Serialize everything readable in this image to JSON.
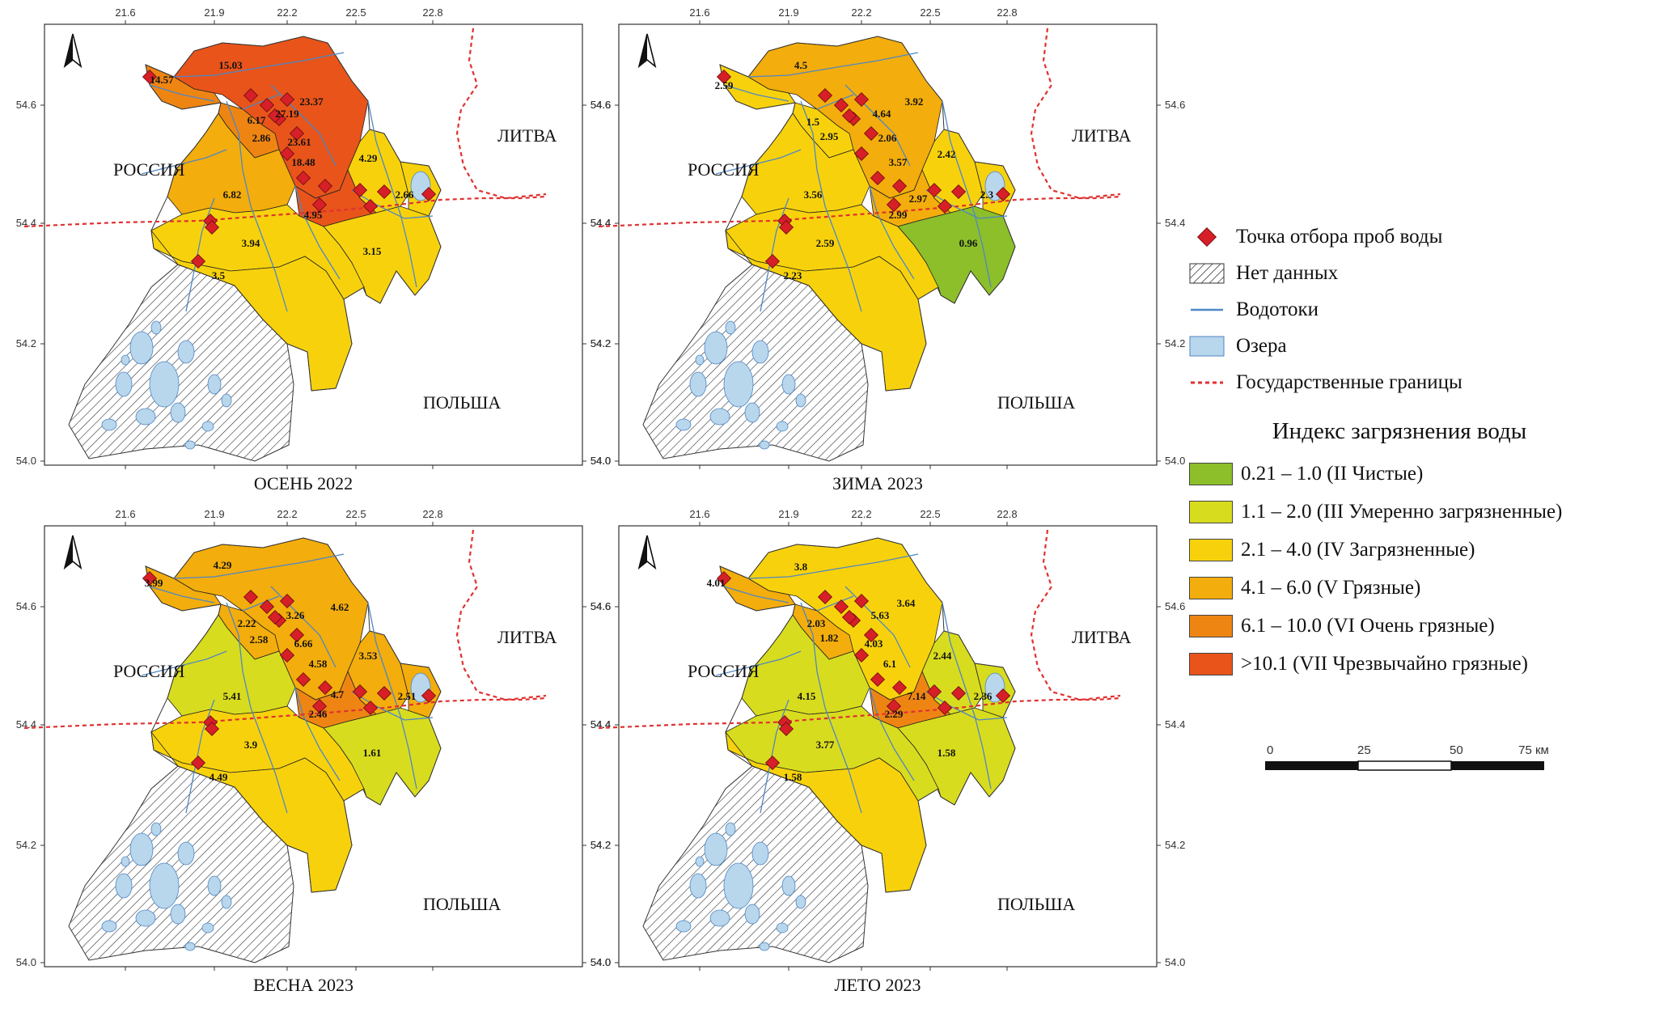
{
  "colors": {
    "c1": "#8cbf2a",
    "c2": "#d8dc1e",
    "c3": "#f7d20c",
    "c4": "#f3ad0c",
    "c5": "#ee8513",
    "c6": "#e8541a",
    "river": "#4f87c5",
    "lake": "#b8d6ec",
    "border": "#e03131",
    "point": "#d61f27"
  },
  "axes": {
    "lon_ticks": [
      "21.6",
      "21.9",
      "22.2",
      "22.5",
      "22.8"
    ],
    "lat_ticks": [
      "54.6",
      "54.4",
      "54.2",
      "54.0"
    ]
  },
  "countries": {
    "russia": "РОССИЯ",
    "lithuania": "ЛИТВА",
    "poland": "ПОЛЬША"
  },
  "maps": [
    {
      "season": "ОСЕНЬ 2022",
      "zones": [
        "c6",
        "c5",
        "c5",
        "c3",
        "c3",
        "c4",
        "c6",
        "c3",
        "c3",
        "c3"
      ],
      "labels": [
        "15.03",
        "14.57",
        "23.37",
        "27.19",
        "6.17",
        "2.86",
        "23.61",
        "18.48",
        "4.29",
        "2.66",
        "6.82",
        "4.95",
        "3.94",
        "3.5",
        "3.15"
      ]
    },
    {
      "season": "ЗИМА 2023",
      "zones": [
        "c4",
        "c3",
        "c3",
        "c3",
        "c3",
        "c3",
        "c4",
        "c1",
        "c3",
        "c3"
      ],
      "labels": [
        "4.5",
        "2.59",
        "3.92",
        "4.64",
        "1.5",
        "2.95",
        "2.06",
        "3.57",
        "2.42",
        "2.3",
        "3.56",
        "2.97",
        "2.99",
        "0.96",
        "2.59",
        "2.23"
      ]
    },
    {
      "season": "ВЕСНА 2023",
      "zones": [
        "c4",
        "c4",
        "c4",
        "c4",
        "c4",
        "c2",
        "c5",
        "c2",
        "c3",
        "c3"
      ],
      "labels": [
        "4.29",
        "3.99",
        "4.62",
        "3.26",
        "2.22",
        "2.58",
        "6.66",
        "4.58",
        "3.53",
        "2.51",
        "5.41",
        "4.7",
        "2.46",
        "3.9",
        "4.49",
        "1.61"
      ]
    },
    {
      "season": "ЛЕТО 2023",
      "zones": [
        "c3",
        "c4",
        "c4",
        "c2",
        "c2",
        "c2",
        "c5",
        "c2",
        "c2",
        "c3"
      ],
      "labels": [
        "3.8",
        "4.01",
        "3.64",
        "5.63",
        "2.03",
        "1.82",
        "4.03",
        "6.1",
        "2.44",
        "2.36",
        "4.15",
        "7.14",
        "2.29",
        "3.77",
        "1.58",
        "1.58"
      ]
    }
  ],
  "legend": {
    "point": "Точка отбора проб воды",
    "nodata": "Нет данных",
    "rivers": "Водотоки",
    "lakes": "Озера",
    "borders": "Государственные границы",
    "index_title": "Индекс загрязнения воды",
    "classes": [
      {
        "color": "c1",
        "label": "0.21 – 1.0 (II Чистые)"
      },
      {
        "color": "c2",
        "label": "1.1 – 2.0 (III Умеренно загрязненные)"
      },
      {
        "color": "c3",
        "label": "2.1 – 4.0 (IV Загрязненные)"
      },
      {
        "color": "c4",
        "label": "4.1 – 6.0 (V Грязные)"
      },
      {
        "color": "c5",
        "label": "6.1 – 10.0 (VI Очень грязные)"
      },
      {
        "color": "c6",
        "label": ">10.1 (VII Чрезвычайно грязные)"
      }
    ]
  },
  "scalebar": {
    "ticks": [
      "0",
      "25",
      "50",
      "75 км"
    ]
  }
}
